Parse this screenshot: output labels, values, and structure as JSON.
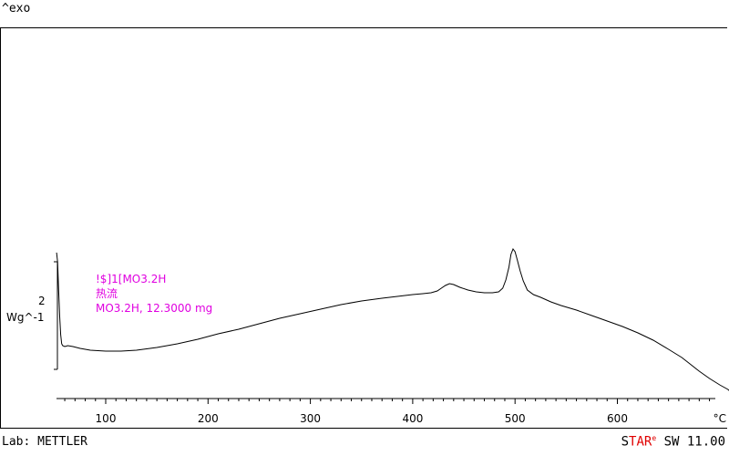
{
  "header": {
    "exo_label": "^exo"
  },
  "legend": {
    "line1": "!$]1[MO3.2H",
    "line2": "热流",
    "line3": "MO3.2H, 12.3000 mg",
    "color": "#e000e0"
  },
  "scale_bar": {
    "value": "2",
    "unit": "Wg^-1"
  },
  "footer": {
    "lab": "Lab: METTLER",
    "brand_s": "S",
    "brand_tar": "TAR",
    "brand_e": "e",
    "brand_rest": " SW 11.00"
  },
  "chart_data": {
    "type": "line",
    "title": "",
    "xlabel": "°C",
    "ylabel": "",
    "xlim": [
      50,
      720
    ],
    "x_ticks": [
      100,
      200,
      300,
      400,
      500,
      600,
      700
    ],
    "x_tick_labels": [
      "100",
      "200",
      "300",
      "400",
      "500",
      "600",
      "°C"
    ],
    "grid": false,
    "series": [
      {
        "name": "MO3.2H, 12.3000 mg",
        "color": "#000000",
        "x": [
          52,
          53,
          54,
          55,
          56,
          57,
          58,
          60,
          63,
          68,
          75,
          85,
          100,
          115,
          130,
          150,
          170,
          190,
          210,
          230,
          250,
          270,
          290,
          310,
          330,
          350,
          370,
          385,
          400,
          410,
          418,
          424,
          428,
          432,
          436,
          440,
          446,
          454,
          462,
          470,
          478,
          484,
          488,
          491,
          494,
          496,
          498,
          500,
          502,
          505,
          508,
          512,
          518,
          525,
          535,
          545,
          560,
          575,
          590,
          605,
          620,
          635,
          650,
          663,
          672,
          680,
          690,
          700,
          708,
          714
        ],
        "y": [
          10.0,
          9.0,
          6.0,
          3.0,
          1.0,
          0.0,
          -0.2,
          -0.3,
          -0.2,
          -0.3,
          -0.5,
          -0.7,
          -0.8,
          -0.8,
          -0.7,
          -0.4,
          0.0,
          0.5,
          1.1,
          1.6,
          2.2,
          2.8,
          3.3,
          3.8,
          4.3,
          4.7,
          5.0,
          5.2,
          5.4,
          5.5,
          5.6,
          5.8,
          6.1,
          6.4,
          6.6,
          6.5,
          6.2,
          5.9,
          5.7,
          5.6,
          5.6,
          5.7,
          6.1,
          7.0,
          8.4,
          9.8,
          10.4,
          10.1,
          9.3,
          8.0,
          6.9,
          5.9,
          5.4,
          5.1,
          4.6,
          4.2,
          3.7,
          3.1,
          2.5,
          1.9,
          1.2,
          0.4,
          -0.6,
          -1.5,
          -2.3,
          -3.0,
          -3.8,
          -4.5,
          -5.0,
          -5.6
        ]
      }
    ]
  }
}
